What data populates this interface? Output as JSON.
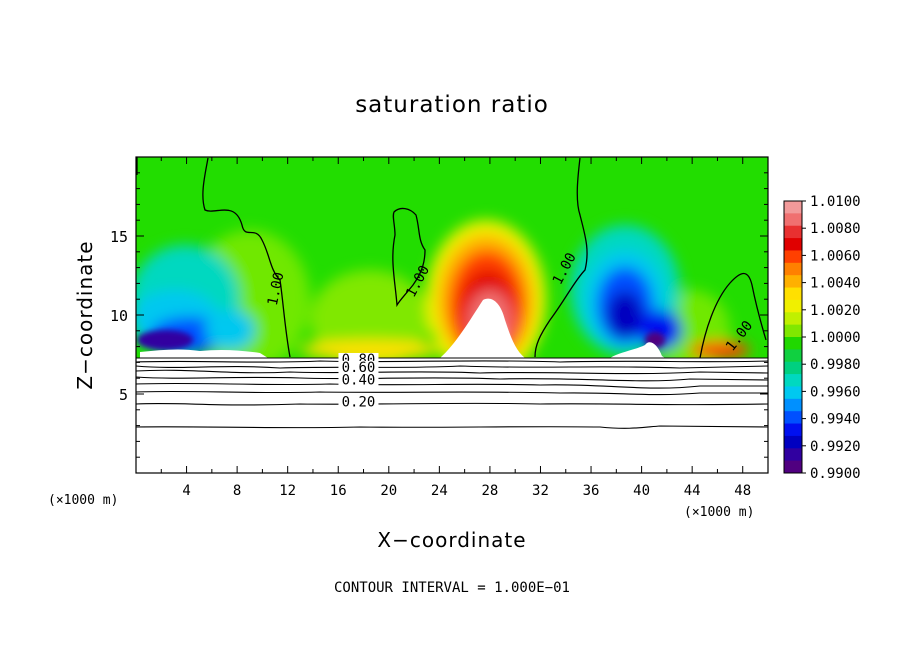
{
  "chart_data": {
    "type": "heatmap",
    "title": "saturation ratio",
    "xlabel": "X−coordinate",
    "ylabel": "Z−coordinate",
    "x_unit_left": "(×1000 m)",
    "x_unit_right": "(×1000 m)",
    "xlim": [
      0,
      50
    ],
    "ylim": [
      0,
      20
    ],
    "xticks": [
      4,
      8,
      12,
      16,
      20,
      24,
      28,
      32,
      36,
      40,
      44,
      48
    ],
    "yticks": [
      5,
      10,
      15
    ],
    "footer": "CONTOUR INTERVAL = 1.000E−01",
    "colorbar": {
      "labels": [
        "1.0100",
        "1.0080",
        "1.0060",
        "1.0040",
        "1.0020",
        "1.0000",
        "0.9980",
        "0.9960",
        "0.9940",
        "0.9920",
        "0.9900"
      ],
      "colors": [
        "#f29a9a",
        "#f07070",
        "#e83030",
        "#e00000",
        "#ff4000",
        "#ff8000",
        "#ffb000",
        "#ffe000",
        "#f0f000",
        "#c0f000",
        "#80e800",
        "#20d800",
        "#10d040",
        "#00d080",
        "#00d8c0",
        "#00c8f0",
        "#0090ff",
        "#0050ff",
        "#0010f0",
        "#0000c0",
        "#3000a0",
        "#500080"
      ]
    },
    "contour_labels_upper": [
      {
        "text": "1.00",
        "x": 11.4,
        "y": 11.6
      },
      {
        "text": "1.00",
        "x": 22.6,
        "y": 12.0
      },
      {
        "text": "1.00",
        "x": 34.2,
        "y": 12.8
      },
      {
        "text": "1.00",
        "x": 48.0,
        "y": 8.5
      }
    ],
    "contour_labels_lower": [
      {
        "text": "0.80",
        "x": 17.6,
        "y": 6.9
      },
      {
        "text": "0.60",
        "x": 17.6,
        "y": 6.4
      },
      {
        "text": "0.40",
        "x": 17.6,
        "y": 5.6
      },
      {
        "text": "0.20",
        "x": 17.6,
        "y": 4.2
      }
    ],
    "ground_level": 7.3
  }
}
